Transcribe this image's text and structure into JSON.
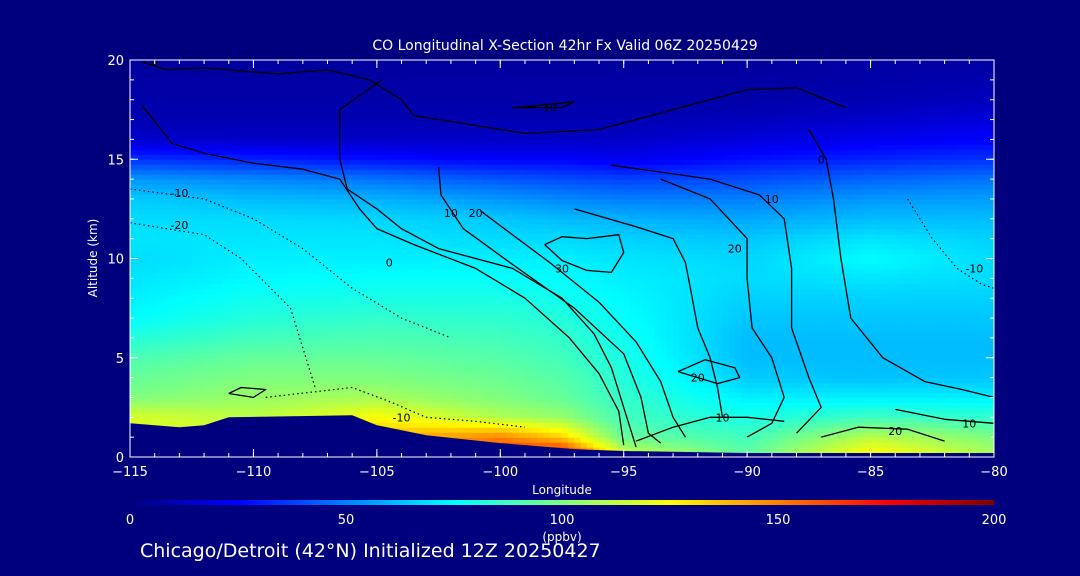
{
  "colors": {
    "background": "#00007f",
    "text": "#ffffff",
    "contour": "#000000",
    "terrain": "#00007f"
  },
  "footer": "Chicago/Detroit (42°N) Initialized 12Z 20250427",
  "chart_data": {
    "type": "heatmap",
    "title": "CO Longitudinal X-Section 42hr  Fx Valid 06Z 20250429",
    "xlabel": "Longitude",
    "ylabel": "Altitude (km)",
    "xlim": [
      -115,
      -80
    ],
    "ylim": [
      0,
      20
    ],
    "x_ticks": [
      -115,
      -110,
      -105,
      -100,
      -95,
      -90,
      -85,
      -80
    ],
    "x_tick_labels": [
      "−115",
      "−110",
      "−105",
      "−100",
      "−95",
      "−90",
      "−85",
      "−80"
    ],
    "y_ticks": [
      0,
      5,
      10,
      15,
      20
    ],
    "y_tick_labels": [
      "0",
      "5",
      "10",
      "15",
      "20"
    ],
    "colorbar": {
      "label": "(ppbv)",
      "range": [
        0,
        200
      ],
      "ticks": [
        0,
        50,
        100,
        150,
        200
      ],
      "colormap": "jet"
    },
    "altitude_levels_km": [
      0,
      1,
      2,
      3,
      4,
      5,
      6,
      7,
      8,
      9,
      10,
      11,
      12,
      13,
      14,
      15,
      16,
      17,
      18,
      19,
      20
    ],
    "longitude_columns": [
      -115,
      -110,
      -105,
      -100,
      -97.5,
      -95,
      -90,
      -85,
      -80
    ],
    "co_ppbv_columns": [
      [
        100,
        115,
        118,
        100,
        95,
        90,
        82,
        75,
        72,
        70,
        68,
        70,
        68,
        65,
        55,
        35,
        15,
        10,
        8,
        7,
        6
      ],
      [
        100,
        120,
        112,
        105,
        100,
        95,
        88,
        82,
        78,
        74,
        72,
        70,
        68,
        62,
        52,
        32,
        14,
        10,
        8,
        7,
        6
      ],
      [
        110,
        140,
        125,
        108,
        100,
        95,
        90,
        85,
        80,
        76,
        72,
        70,
        67,
        60,
        48,
        28,
        14,
        10,
        8,
        7,
        6
      ],
      [
        170,
        150,
        110,
        100,
        96,
        92,
        88,
        84,
        80,
        76,
        72,
        68,
        64,
        55,
        42,
        25,
        14,
        10,
        8,
        7,
        6
      ],
      [
        185,
        135,
        105,
        95,
        92,
        88,
        85,
        82,
        78,
        75,
        72,
        68,
        62,
        52,
        40,
        25,
        14,
        10,
        8,
        7,
        6
      ],
      [
        120,
        95,
        88,
        85,
        82,
        80,
        78,
        76,
        74,
        72,
        70,
        66,
        60,
        50,
        38,
        22,
        14,
        10,
        8,
        7,
        6
      ],
      [
        95,
        88,
        80,
        72,
        65,
        62,
        62,
        64,
        66,
        68,
        67,
        64,
        58,
        50,
        40,
        28,
        18,
        12,
        8,
        7,
        6
      ],
      [
        130,
        112,
        88,
        72,
        63,
        62,
        62,
        64,
        66,
        70,
        75,
        70,
        62,
        55,
        45,
        32,
        22,
        15,
        10,
        8,
        7
      ],
      [
        110,
        100,
        85,
        72,
        64,
        62,
        62,
        64,
        66,
        68,
        68,
        66,
        62,
        56,
        48,
        35,
        25,
        18,
        12,
        9,
        7
      ]
    ],
    "terrain_top_km": [
      {
        "lon": -115,
        "alt": 1.7
      },
      {
        "lon": -113,
        "alt": 1.5
      },
      {
        "lon": -112,
        "alt": 1.6
      },
      {
        "lon": -111,
        "alt": 2.0
      },
      {
        "lon": -106,
        "alt": 2.1
      },
      {
        "lon": -105,
        "alt": 1.6
      },
      {
        "lon": -103,
        "alt": 1.1
      },
      {
        "lon": -100,
        "alt": 0.7
      },
      {
        "lon": -97,
        "alt": 0.4
      },
      {
        "lon": -95,
        "alt": 0.3
      },
      {
        "lon": -90,
        "alt": 0.2
      },
      {
        "lon": -85,
        "alt": 0.2
      },
      {
        "lon": -80,
        "alt": 0.2
      }
    ],
    "contours": [
      {
        "label": "0",
        "style": "solid",
        "label_at": [
          -114,
          19.9
        ],
        "points": [
          [
            -114.5,
            19.9
          ],
          [
            -113.5,
            19.5
          ],
          [
            -112,
            19.6
          ],
          [
            -109,
            19.3
          ],
          [
            -107,
            19.5
          ],
          [
            -105.3,
            19.0
          ],
          [
            -104,
            18.0
          ],
          [
            -103.5,
            17.2
          ],
          [
            -101.5,
            16.8
          ],
          [
            -99,
            16.3
          ],
          [
            -96,
            16.5
          ],
          [
            -93,
            17.5
          ],
          [
            -90,
            18.5
          ],
          [
            -88,
            18.6
          ],
          [
            -86,
            17.6
          ]
        ]
      },
      {
        "label": "",
        "style": "solid",
        "label_at": null,
        "points": [
          [
            -114.5,
            17.7
          ],
          [
            -113.3,
            15.8
          ],
          [
            -112,
            15.3
          ],
          [
            -110,
            14.8
          ],
          [
            -108,
            14.5
          ],
          [
            -106.5,
            14.0
          ],
          [
            -105.7,
            12.5
          ],
          [
            -105,
            11.5
          ],
          [
            -103.5,
            10.7
          ],
          [
            -101,
            9.5
          ],
          [
            -99,
            8.0
          ],
          [
            -97.2,
            6.0
          ],
          [
            -96,
            4.2
          ],
          [
            -95.2,
            2.3
          ],
          [
            -95,
            0.6
          ]
        ]
      },
      {
        "label": "0",
        "style": "solid",
        "label_at": [
          -104.5,
          9.8
        ],
        "points": [
          [
            -104.8,
            19.0
          ],
          [
            -106.5,
            17.5
          ],
          [
            -106.5,
            15.0
          ],
          [
            -106.2,
            13.5
          ],
          [
            -105,
            12.5
          ],
          [
            -104,
            11.5
          ],
          [
            -102.5,
            10.5
          ],
          [
            -99.5,
            9.5
          ],
          [
            -97.5,
            8.0
          ],
          [
            -96.2,
            6.2
          ],
          [
            -95.5,
            4.5
          ],
          [
            -95,
            2.5
          ],
          [
            -94.5,
            0.5
          ]
        ]
      },
      {
        "label": "10",
        "style": "solid",
        "label_at": [
          -102,
          12.3
        ],
        "points": [
          [
            -102.5,
            14.6
          ],
          [
            -102.4,
            13.2
          ],
          [
            -101.5,
            11.5
          ],
          [
            -99.5,
            9.7
          ],
          [
            -97,
            7.5
          ],
          [
            -95,
            5.2
          ],
          [
            -94.3,
            3.0
          ],
          [
            -94,
            1.2
          ],
          [
            -93.5,
            0.7
          ]
        ]
      },
      {
        "label": "20",
        "style": "solid",
        "label_at": [
          -101,
          12.3
        ],
        "points": [
          [
            -100.8,
            12.4
          ],
          [
            -98,
            9.8
          ],
          [
            -96,
            7.8
          ],
          [
            -94.5,
            5.8
          ],
          [
            -93.5,
            3.8
          ],
          [
            -93,
            2.0
          ],
          [
            -92.5,
            1.0
          ]
        ]
      },
      {
        "label": "",
        "style": "solid",
        "label_at": null,
        "points": [
          [
            -97,
            12.5
          ],
          [
            -94.5,
            11.6
          ],
          [
            -93,
            11.0
          ],
          [
            -92.5,
            9.8
          ],
          [
            -92.3,
            8.5
          ],
          [
            -92,
            6.5
          ],
          [
            -91.5,
            5.0
          ],
          [
            -91.2,
            3.5
          ],
          [
            -91,
            2.0
          ]
        ]
      },
      {
        "label": "30",
        "style": "solid",
        "label_at": [
          -97.5,
          9.5
        ],
        "points": [
          [
            -98.2,
            10.7
          ],
          [
            -97.5,
            9.9
          ],
          [
            -96.5,
            9.4
          ],
          [
            -95.5,
            9.3
          ],
          [
            -95,
            10.3
          ],
          [
            -95.2,
            11.2
          ],
          [
            -96.5,
            11.0
          ],
          [
            -97.5,
            11.1
          ],
          [
            -98.2,
            10.7
          ]
        ]
      },
      {
        "label": "20",
        "style": "solid",
        "label_at": [
          -90.5,
          10.5
        ],
        "points": [
          [
            -93.5,
            14.0
          ],
          [
            -91.5,
            13.0
          ],
          [
            -90,
            11.0
          ],
          [
            -90,
            9.0
          ],
          [
            -89.8,
            6.5
          ],
          [
            -89,
            5.0
          ],
          [
            -88.5,
            3.0
          ],
          [
            -89,
            1.7
          ],
          [
            -90,
            1.0
          ]
        ]
      },
      {
        "label": "10",
        "style": "solid",
        "label_at": [
          -89,
          13.0
        ],
        "points": [
          [
            -95.5,
            14.7
          ],
          [
            -91.5,
            14.0
          ],
          [
            -89.5,
            13.2
          ],
          [
            -88.5,
            12.0
          ],
          [
            -88.2,
            9.5
          ],
          [
            -88.2,
            6.5
          ],
          [
            -87.5,
            4.0
          ],
          [
            -87,
            2.5
          ],
          [
            -88,
            1.2
          ]
        ]
      },
      {
        "label": "0",
        "style": "solid",
        "label_at": [
          -87,
          15.0
        ],
        "points": [
          [
            -87.5,
            16.5
          ],
          [
            -86.8,
            15.0
          ],
          [
            -86.5,
            13.0
          ],
          [
            -86.2,
            10.0
          ],
          [
            -85.8,
            7.0
          ],
          [
            -84.5,
            5.0
          ],
          [
            -82.8,
            3.8
          ],
          [
            -81.3,
            3.4
          ],
          [
            -80,
            3.0
          ]
        ]
      },
      {
        "label": "10",
        "style": "solid",
        "label_at": [
          -81,
          1.7
        ],
        "points": [
          [
            -84,
            2.4
          ],
          [
            -82,
            1.9
          ],
          [
            -80,
            1.7
          ]
        ]
      },
      {
        "label": "20",
        "style": "solid",
        "label_at": [
          -84,
          1.3
        ],
        "points": [
          [
            -87,
            1.0
          ],
          [
            -85.5,
            1.5
          ],
          [
            -83.5,
            1.4
          ],
          [
            -82,
            0.8
          ]
        ]
      },
      {
        "label": "20",
        "style": "solid",
        "label_at": [
          -92,
          4.0
        ],
        "points": [
          [
            -92.8,
            4.3
          ],
          [
            -91.7,
            4.9
          ],
          [
            -90.5,
            4.5
          ],
          [
            -90.3,
            4.0
          ],
          [
            -91.2,
            3.7
          ],
          [
            -92.8,
            4.3
          ]
        ]
      },
      {
        "label": "10",
        "style": "solid",
        "label_at": [
          -91,
          2.0
        ],
        "points": [
          [
            -94.5,
            0.8
          ],
          [
            -93,
            1.5
          ],
          [
            -91.5,
            2.0
          ],
          [
            -90,
            2.0
          ],
          [
            -88.5,
            1.8
          ]
        ]
      },
      {
        "label": "10",
        "style": "solid",
        "label_at": [
          -98,
          17.6
        ],
        "points": [
          [
            -99.5,
            17.6
          ],
          [
            -98.5,
            17.7
          ],
          [
            -97,
            17.9
          ],
          [
            -97.5,
            17.6
          ],
          [
            -99.5,
            17.6
          ]
        ]
      },
      {
        "label": "",
        "style": "solid",
        "label_at": null,
        "points": [
          [
            -111,
            3.2
          ],
          [
            -110,
            3.0
          ],
          [
            -109.5,
            3.4
          ],
          [
            -110.5,
            3.5
          ],
          [
            -111,
            3.2
          ]
        ]
      },
      {
        "label": "-10",
        "style": "dotted",
        "label_at": [
          -113,
          13.3
        ],
        "points": [
          [
            -115,
            13.5
          ],
          [
            -112,
            13.0
          ],
          [
            -110,
            12.0
          ],
          [
            -108,
            10.5
          ],
          [
            -106,
            8.5
          ],
          [
            -104,
            7.0
          ],
          [
            -102,
            6.0
          ]
        ]
      },
      {
        "label": "-20",
        "style": "dotted",
        "label_at": [
          -113,
          11.7
        ],
        "points": [
          [
            -115,
            11.8
          ],
          [
            -112,
            11.2
          ],
          [
            -110.5,
            10.0
          ],
          [
            -108.5,
            7.5
          ],
          [
            -108,
            5.5
          ],
          [
            -107.5,
            3.5
          ]
        ]
      },
      {
        "label": "-10",
        "style": "dotted",
        "label_at": [
          -104,
          2.0
        ],
        "points": [
          [
            -109.5,
            3.0
          ],
          [
            -106,
            3.5
          ],
          [
            -104.5,
            2.8
          ],
          [
            -103,
            2.0
          ],
          [
            -101,
            1.8
          ],
          [
            -99,
            1.5
          ]
        ]
      },
      {
        "label": "-10",
        "style": "dotted",
        "label_at": [
          -80.8,
          9.5
        ],
        "points": [
          [
            -83.5,
            13.0
          ],
          [
            -82.5,
            11.0
          ],
          [
            -81.5,
            9.5
          ],
          [
            -80.5,
            8.7
          ],
          [
            -80,
            8.5
          ]
        ]
      }
    ]
  }
}
